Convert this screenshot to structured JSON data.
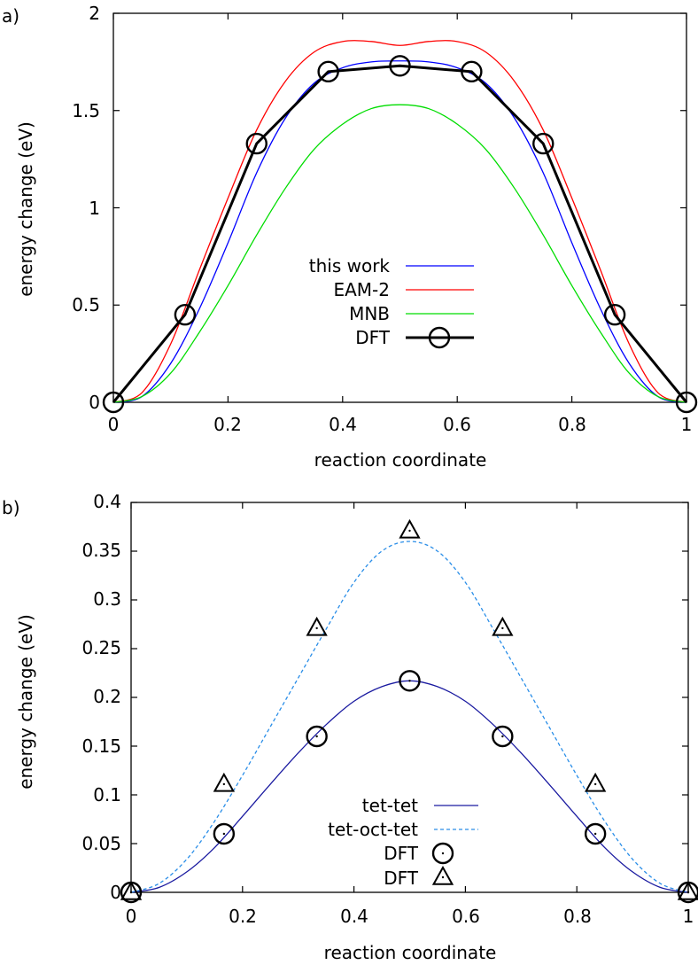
{
  "chart_data": [
    {
      "panel_label": "a)",
      "type": "line",
      "xlabel": "reaction coordinate",
      "ylabel": "energy change (eV)",
      "xlim": [
        0,
        1
      ],
      "ylim": [
        0,
        2
      ],
      "xticks": [
        "0",
        "0.2",
        "0.4",
        "0.6",
        "0.8",
        "1"
      ],
      "yticks": [
        "0",
        "0.5",
        "1",
        "1.5",
        "2"
      ],
      "legend_position": "center",
      "grid": false,
      "series": [
        {
          "name": "this work",
          "color": "#0000ff",
          "style": "solid",
          "markers": false,
          "x": [
            0,
            0.05,
            0.1,
            0.15,
            0.2,
            0.25,
            0.3,
            0.35,
            0.4,
            0.45,
            0.5,
            0.55,
            0.6,
            0.65,
            0.7,
            0.75,
            0.8,
            0.85,
            0.9,
            0.95,
            1
          ],
          "y": [
            0,
            0.03,
            0.2,
            0.48,
            0.82,
            1.18,
            1.46,
            1.64,
            1.72,
            1.75,
            1.755,
            1.75,
            1.72,
            1.64,
            1.46,
            1.18,
            0.82,
            0.48,
            0.2,
            0.03,
            0
          ]
        },
        {
          "name": "EAM-2",
          "color": "#ff0000",
          "style": "solid",
          "markers": false,
          "x": [
            0,
            0.05,
            0.1,
            0.15,
            0.2,
            0.25,
            0.3,
            0.35,
            0.4,
            0.45,
            0.5,
            0.55,
            0.6,
            0.65,
            0.7,
            0.75,
            0.8,
            0.85,
            0.9,
            0.95,
            1
          ],
          "y": [
            0,
            0.05,
            0.3,
            0.68,
            1.05,
            1.4,
            1.65,
            1.8,
            1.855,
            1.855,
            1.835,
            1.855,
            1.855,
            1.8,
            1.65,
            1.4,
            1.05,
            0.68,
            0.3,
            0.05,
            0
          ]
        },
        {
          "name": "MNB",
          "color": "#00dd00",
          "style": "solid",
          "markers": false,
          "x": [
            0,
            0.05,
            0.1,
            0.15,
            0.2,
            0.25,
            0.3,
            0.35,
            0.4,
            0.45,
            0.5,
            0.55,
            0.6,
            0.65,
            0.7,
            0.75,
            0.8,
            0.85,
            0.9,
            0.95,
            1
          ],
          "y": [
            0,
            0.03,
            0.15,
            0.36,
            0.6,
            0.86,
            1.1,
            1.3,
            1.43,
            1.51,
            1.53,
            1.51,
            1.43,
            1.3,
            1.1,
            0.86,
            0.6,
            0.36,
            0.15,
            0.03,
            0
          ]
        },
        {
          "name": "DFT",
          "color": "#000000",
          "style": "solid",
          "markers": true,
          "marker": "circle",
          "x": [
            0,
            0.125,
            0.25,
            0.375,
            0.5,
            0.625,
            0.75,
            0.875,
            1
          ],
          "y": [
            0,
            0.45,
            1.33,
            1.7,
            1.73,
            1.7,
            1.33,
            0.45,
            0
          ]
        }
      ]
    },
    {
      "panel_label": "b)",
      "type": "line",
      "xlabel": "reaction coordinate",
      "ylabel": "energy change (eV)",
      "xlim": [
        0,
        1
      ],
      "ylim": [
        0,
        0.4
      ],
      "xticks": [
        "0",
        "0.2",
        "0.4",
        "0.6",
        "0.8",
        "1"
      ],
      "yticks": [
        "0",
        "0.05",
        "0.1",
        "0.15",
        "0.2",
        "0.25",
        "0.3",
        "0.35",
        "0.4"
      ],
      "legend_position": "bottom-center",
      "grid": false,
      "series": [
        {
          "name": "tet-tet",
          "color": "#1a1aa0",
          "style": "solid",
          "markers": false,
          "x": [
            0,
            0.05,
            0.1,
            0.15,
            0.2,
            0.25,
            0.3,
            0.35,
            0.4,
            0.45,
            0.5,
            0.55,
            0.6,
            0.65,
            0.7,
            0.75,
            0.8,
            0.85,
            0.9,
            0.95,
            1
          ],
          "y": [
            0,
            0.005,
            0.021,
            0.046,
            0.078,
            0.111,
            0.143,
            0.172,
            0.196,
            0.211,
            0.217,
            0.211,
            0.196,
            0.172,
            0.143,
            0.111,
            0.078,
            0.046,
            0.021,
            0.005,
            0
          ]
        },
        {
          "name": "tet-oct-tet",
          "color": "#2a8ee8",
          "style": "dashed",
          "markers": false,
          "x": [
            0,
            0.05,
            0.1,
            0.15,
            0.2,
            0.25,
            0.3,
            0.35,
            0.4,
            0.45,
            0.5,
            0.55,
            0.6,
            0.65,
            0.7,
            0.75,
            0.8,
            0.85,
            0.9,
            0.95,
            1
          ],
          "y": [
            0,
            0.009,
            0.034,
            0.073,
            0.12,
            0.17,
            0.22,
            0.27,
            0.318,
            0.35,
            0.36,
            0.35,
            0.318,
            0.27,
            0.22,
            0.17,
            0.12,
            0.073,
            0.034,
            0.009,
            0
          ]
        },
        {
          "name": "DFT",
          "color": "#000000",
          "style": "none",
          "markers": true,
          "marker": "circle",
          "x": [
            0,
            0.1667,
            0.3333,
            0.5,
            0.6667,
            0.8333,
            1
          ],
          "y": [
            0,
            0.06,
            0.16,
            0.217,
            0.16,
            0.06,
            0
          ]
        },
        {
          "name": "DFT",
          "color": "#000000",
          "style": "none",
          "markers": true,
          "marker": "triangle",
          "x": [
            0,
            0.1667,
            0.3333,
            0.5,
            0.6667,
            0.8333,
            1
          ],
          "y": [
            0,
            0.111,
            0.271,
            0.371,
            0.271,
            0.111,
            0
          ]
        }
      ]
    }
  ]
}
